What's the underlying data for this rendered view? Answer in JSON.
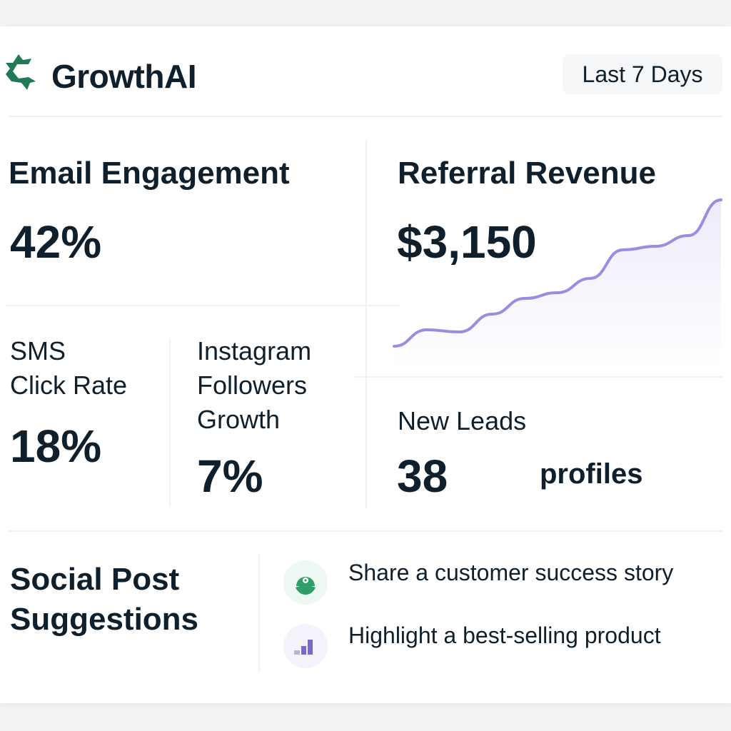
{
  "header": {
    "brand": "GrowthAI",
    "date_range": "Last 7 Days"
  },
  "metrics": {
    "email": {
      "title": "Email Engagement",
      "value": "42%"
    },
    "referral": {
      "title": "Referral Revenue",
      "value": "$3,150",
      "trend": [
        15,
        38,
        35,
        60,
        82,
        90,
        110,
        150,
        155,
        170,
        220
      ]
    },
    "sms": {
      "title_line1": "SMS",
      "title_line2": "Click Rate",
      "value": "18%"
    },
    "instagram": {
      "title_line1": "Instagram",
      "title_line2": "Followers",
      "title_line3": "Growth",
      "value": "7%"
    },
    "leads": {
      "title": "New Leads",
      "value": "38",
      "unit": "profiles"
    }
  },
  "suggestions": {
    "title_line1": "Social Post",
    "title_line2": "Suggestions",
    "items": [
      {
        "icon": "customer-icon",
        "text": "Share a customer success story"
      },
      {
        "icon": "bar-chart-icon",
        "text": "Highlight a best-selling product"
      }
    ]
  },
  "colors": {
    "brand": "#1f7a55",
    "accent": "#9b8ce0"
  }
}
